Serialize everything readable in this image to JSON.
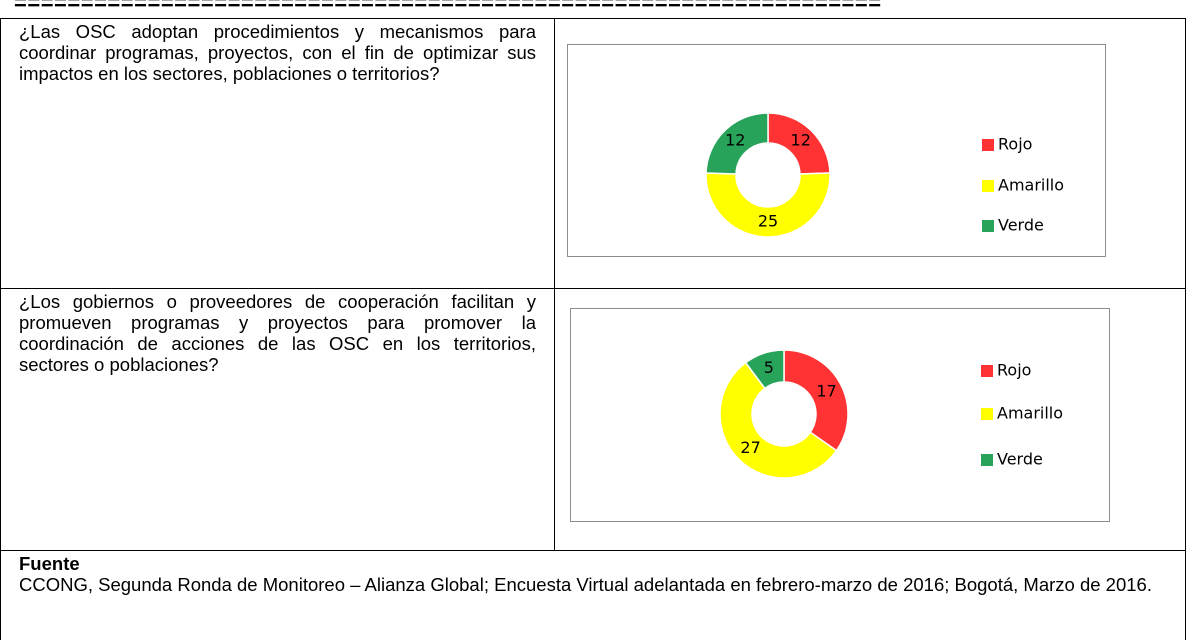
{
  "separator": "=================================================================",
  "table": {
    "rows": [
      {
        "question": "¿Las OSC adoptan procedimientos y mecanismos para coordinar programas, proyectos, con el fin de optimizar sus impactos en los sectores, poblaciones o territorios?"
      },
      {
        "question": "¿Los gobiernos o proveedores de cooperación facilitan y promueven programas y proyectos para promover la coordinación de acciones de las OSC en los territorios, sectores o poblaciones?"
      }
    ]
  },
  "chart_data": [
    {
      "type": "donut",
      "categories": [
        "Rojo",
        "Amarillo",
        "Verde"
      ],
      "values": [
        12,
        25,
        12
      ],
      "colors": [
        "#ff3333",
        "#ffff00",
        "#27a35a"
      ],
      "legend": "right"
    },
    {
      "type": "donut",
      "categories": [
        "Rojo",
        "Amarillo",
        "Verde"
      ],
      "values": [
        17,
        27,
        5
      ],
      "colors": [
        "#ff3333",
        "#ffff00",
        "#27a35a"
      ],
      "legend": "right"
    }
  ],
  "source": {
    "title": "Fuente",
    "text": "CCONG, Segunda Ronda de Monitoreo – Alianza Global; Encuesta Virtual adelantada en febrero-marzo de 2016; Bogotá, Marzo de 2016."
  }
}
